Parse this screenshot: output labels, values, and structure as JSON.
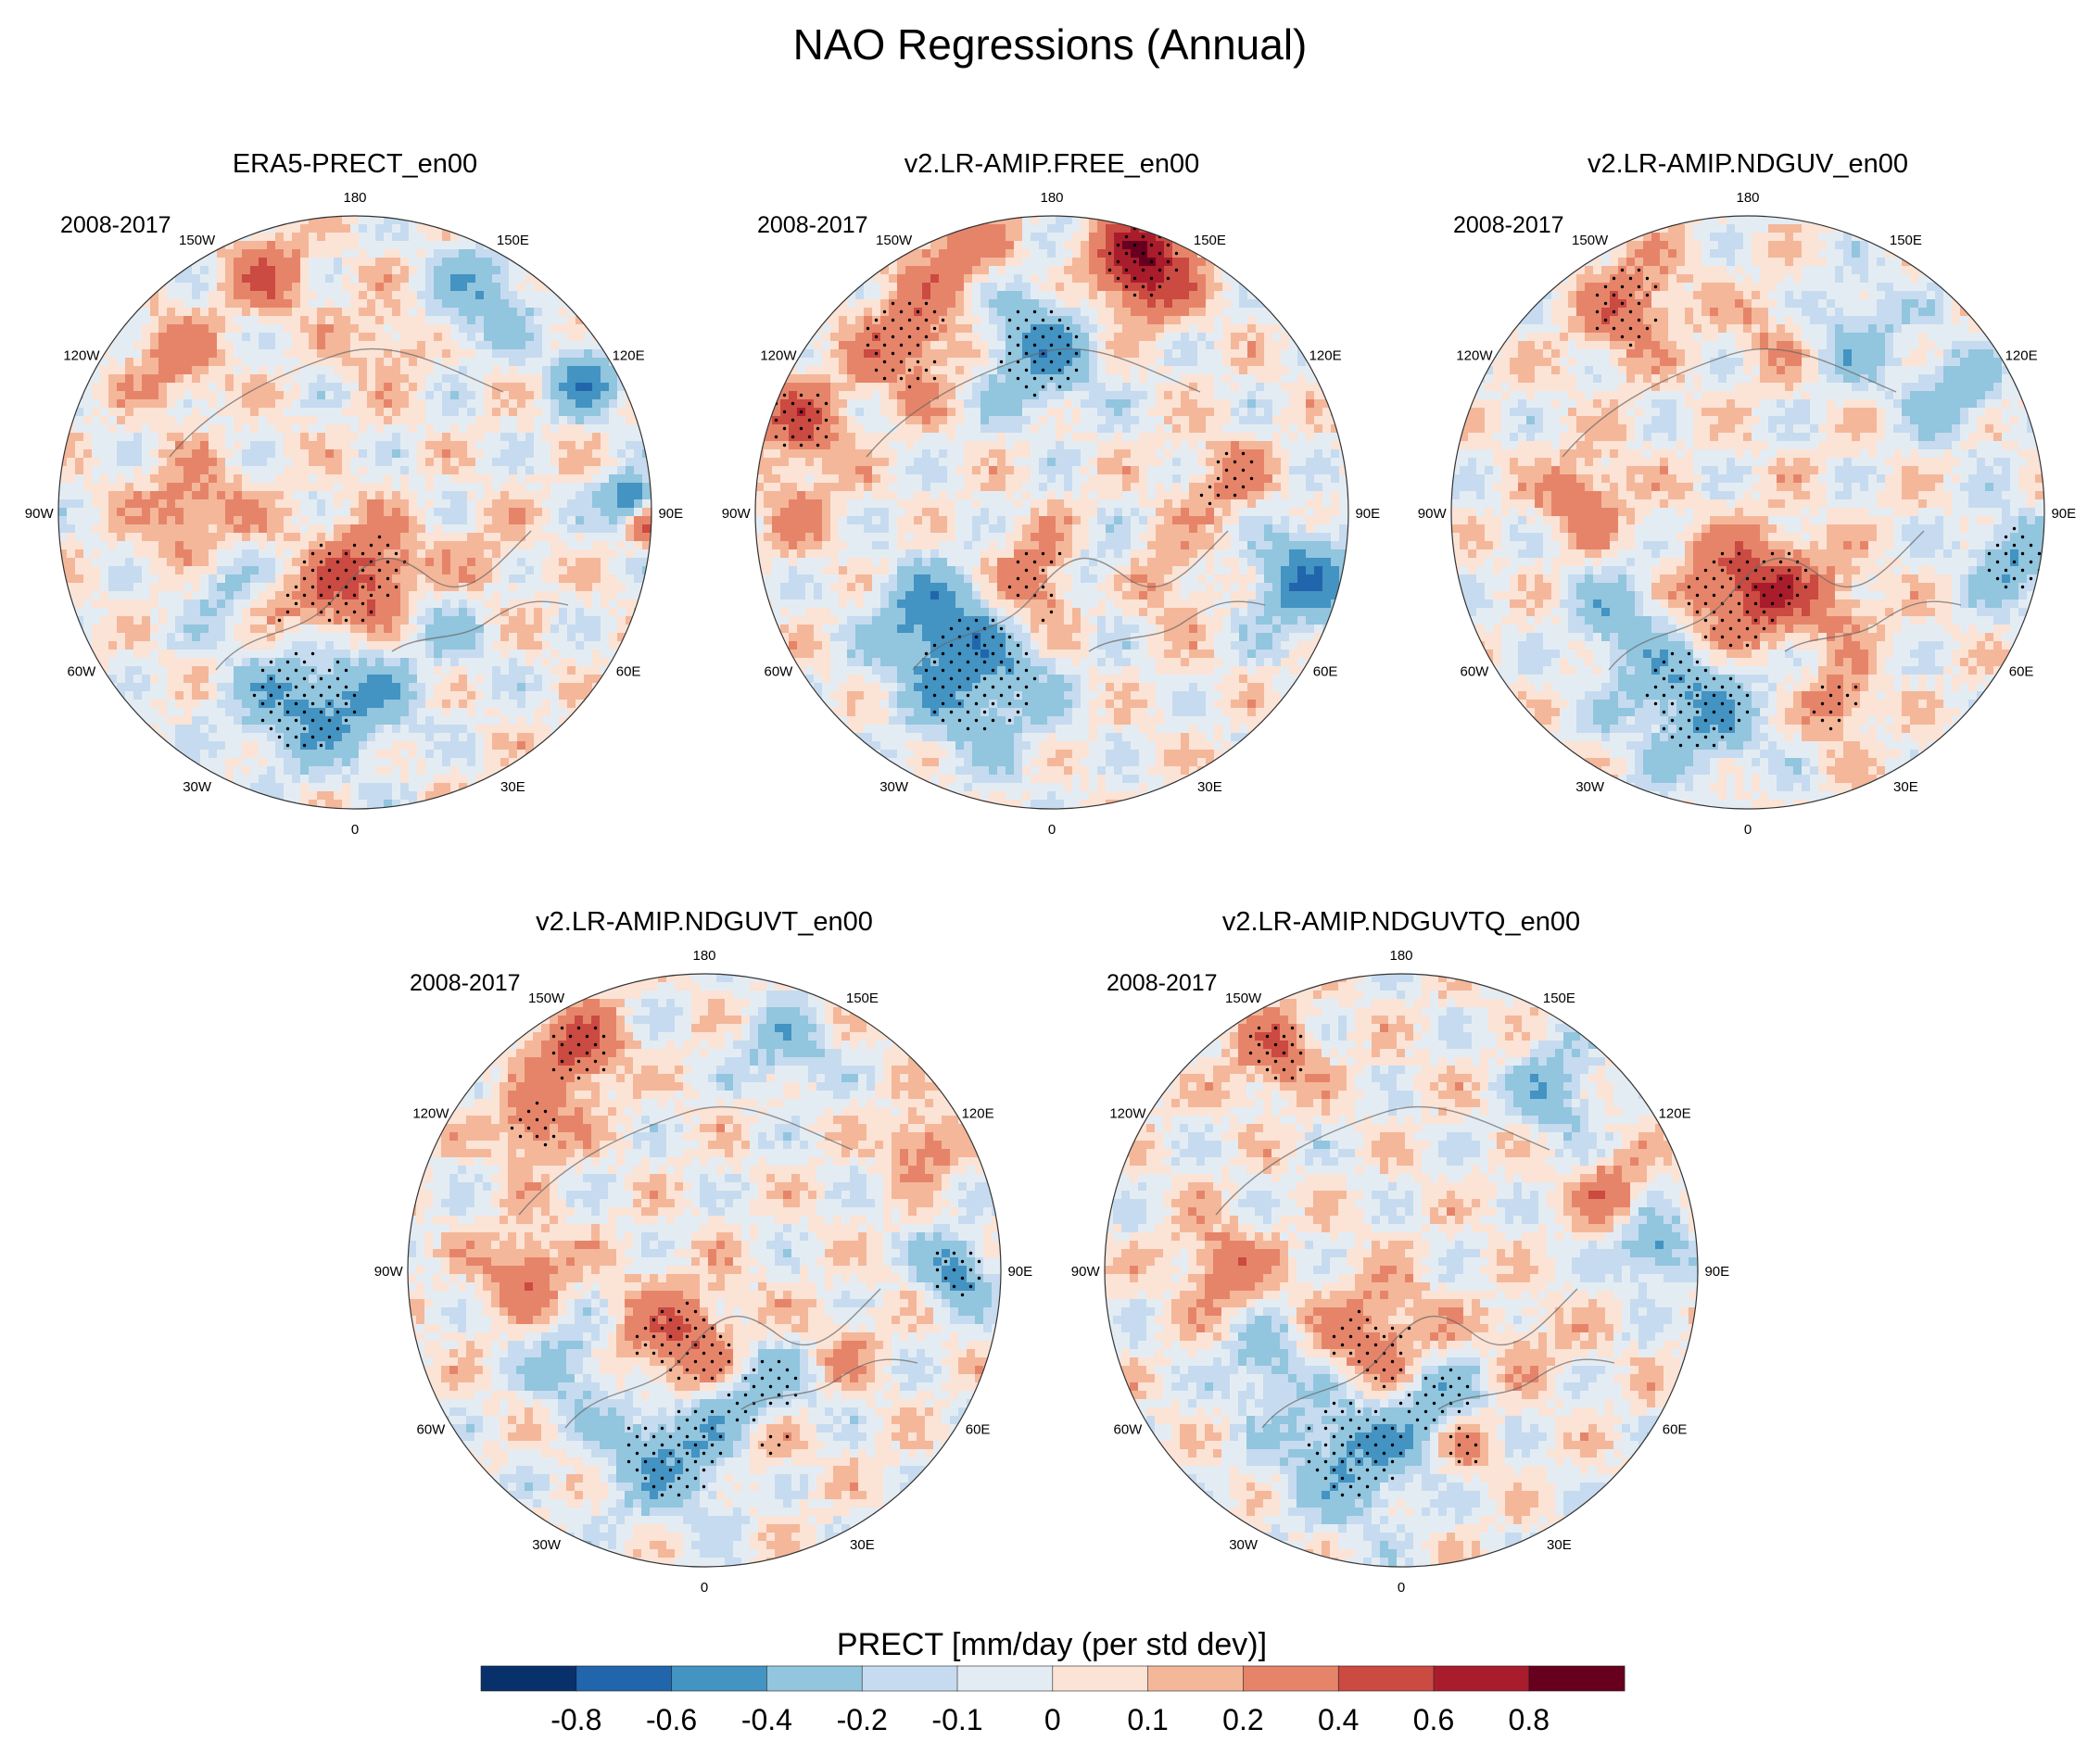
{
  "chart_data": {
    "type": "heatmap",
    "projection": "north-polar-stereographic",
    "title": "NAO Regressions (Annual)",
    "variable_label": "PRECT [mm/day (per std dev)]",
    "period_label": "2008-2017",
    "longitude_labels": [
      "180",
      "150E",
      "120E",
      "90E",
      "60E",
      "30E",
      "0",
      "30W",
      "60W",
      "90W",
      "120W",
      "150W"
    ],
    "longitude_degrees": [
      180,
      150,
      120,
      90,
      60,
      30,
      0,
      -30,
      -60,
      -90,
      -120,
      -150
    ],
    "colorbar": {
      "tick_labels": [
        "-0.8",
        "-0.6",
        "-0.4",
        "-0.2",
        "-0.1",
        "0",
        "0.1",
        "0.2",
        "0.4",
        "0.6",
        "0.8"
      ],
      "levels": [
        -0.8,
        -0.6,
        -0.4,
        -0.2,
        -0.1,
        0,
        0.1,
        0.2,
        0.4,
        0.6,
        0.8
      ],
      "colors": [
        "#08306b",
        "#2166ac",
        "#4393c3",
        "#92c5de",
        "#c6dbef",
        "#e4ecf3",
        "#fbe3d6",
        "#f4b79a",
        "#e6846a",
        "#cb4a42",
        "#a91c2b",
        "#67001f"
      ]
    },
    "panels": [
      {
        "title": "ERA5-PRECT_en00",
        "blobs": [
          {
            "lon": -15,
            "r": 0.65,
            "v": -0.45,
            "s": 0.16,
            "st": true
          },
          {
            "lon": 5,
            "r": 0.62,
            "v": -0.25,
            "s": 0.12
          },
          {
            "lon": -60,
            "r": 0.5,
            "v": -0.25,
            "s": 0.1
          },
          {
            "lon": -20,
            "r": 0.3,
            "v": 0.4,
            "s": 0.16,
            "st": true
          },
          {
            "lon": 20,
            "r": 0.2,
            "v": 0.3,
            "s": 0.1,
            "st": true
          },
          {
            "lon": -90,
            "r": 0.55,
            "v": 0.3,
            "s": 0.12
          },
          {
            "lon": -130,
            "r": 0.8,
            "v": 0.3,
            "s": 0.1
          },
          {
            "lon": -160,
            "r": 0.85,
            "v": 0.35,
            "s": 0.1
          },
          {
            "lon": 150,
            "r": 0.85,
            "v": -0.35,
            "s": 0.12
          },
          {
            "lon": 120,
            "r": 0.9,
            "v": -0.5,
            "s": 0.08
          },
          {
            "lon": 92,
            "r": 0.93,
            "v": -0.7,
            "s": 0.06
          },
          {
            "lon": 88,
            "r": 0.98,
            "v": 0.6,
            "s": 0.05
          },
          {
            "lon": 40,
            "r": 0.5,
            "v": -0.2,
            "s": 0.1
          },
          {
            "lon": 70,
            "r": 0.45,
            "v": 0.15,
            "s": 0.1
          },
          {
            "lon": -45,
            "r": 0.25,
            "v": -0.2,
            "s": 0.08
          },
          {
            "lon": 170,
            "r": 0.6,
            "v": 0.2,
            "s": 0.1
          }
        ]
      },
      {
        "title": "v2.LR-AMIP.FREE_en00",
        "blobs": [
          {
            "lon": -25,
            "r": 0.6,
            "v": -0.45,
            "s": 0.18,
            "st": true
          },
          {
            "lon": -50,
            "r": 0.55,
            "v": -0.4,
            "s": 0.12
          },
          {
            "lon": -5,
            "r": 0.25,
            "v": 0.45,
            "s": 0.12,
            "st": true
          },
          {
            "lon": 30,
            "r": 0.25,
            "v": -0.3,
            "s": 0.1,
            "st": true
          },
          {
            "lon": 160,
            "r": 0.9,
            "v": 0.8,
            "s": 0.12,
            "st": true
          },
          {
            "lon": -175,
            "r": 0.55,
            "v": -0.45,
            "s": 0.14,
            "st": true
          },
          {
            "lon": -140,
            "r": 0.75,
            "v": 0.35,
            "s": 0.14,
            "st": true
          },
          {
            "lon": -110,
            "r": 0.9,
            "v": 0.45,
            "s": 0.1,
            "st": true
          },
          {
            "lon": 75,
            "r": 0.88,
            "v": -0.55,
            "s": 0.12
          },
          {
            "lon": 100,
            "r": 0.6,
            "v": 0.25,
            "s": 0.1,
            "st": true
          },
          {
            "lon": -160,
            "r": 0.95,
            "v": 0.3,
            "s": 0.12
          },
          {
            "lon": -90,
            "r": 0.85,
            "v": 0.2,
            "s": 0.1
          },
          {
            "lon": 60,
            "r": 0.45,
            "v": 0.2,
            "s": 0.1
          }
        ]
      },
      {
        "title": "v2.LR-AMIP.NDGUV_en00",
        "blobs": [
          {
            "lon": -15,
            "r": 0.65,
            "v": -0.45,
            "s": 0.16,
            "st": true
          },
          {
            "lon": -50,
            "r": 0.55,
            "v": -0.3,
            "s": 0.12
          },
          {
            "lon": -10,
            "r": 0.3,
            "v": 0.45,
            "s": 0.15,
            "st": true
          },
          {
            "lon": 25,
            "r": 0.25,
            "v": 0.3,
            "s": 0.1,
            "st": true
          },
          {
            "lon": 25,
            "r": 0.72,
            "v": 0.35,
            "s": 0.08,
            "st": true
          },
          {
            "lon": -150,
            "r": 0.8,
            "v": 0.35,
            "s": 0.12,
            "st": true
          },
          {
            "lon": -95,
            "r": 0.55,
            "v": 0.35,
            "s": 0.1
          },
          {
            "lon": 150,
            "r": 0.7,
            "v": -0.3,
            "s": 0.12
          },
          {
            "lon": 120,
            "r": 0.8,
            "v": -0.35,
            "s": 0.1
          },
          {
            "lon": 80,
            "r": 0.9,
            "v": -0.4,
            "s": 0.1,
            "st": true
          },
          {
            "lon": 45,
            "r": 0.45,
            "v": 0.2,
            "s": 0.1
          },
          {
            "lon": 170,
            "r": 0.6,
            "v": 0.2,
            "s": 0.1
          }
        ]
      },
      {
        "title": "v2.LR-AMIP.NDGUVT_en00",
        "blobs": [
          {
            "lon": -10,
            "r": 0.6,
            "v": -0.45,
            "s": 0.16,
            "st": true
          },
          {
            "lon": 25,
            "r": 0.45,
            "v": -0.35,
            "s": 0.12,
            "st": true
          },
          {
            "lon": -55,
            "r": 0.55,
            "v": -0.3,
            "s": 0.1
          },
          {
            "lon": -15,
            "r": 0.28,
            "v": 0.45,
            "s": 0.15,
            "st": true
          },
          {
            "lon": 20,
            "r": 0.62,
            "v": 0.3,
            "s": 0.08,
            "st": true
          },
          {
            "lon": -150,
            "r": 0.85,
            "v": 0.5,
            "s": 0.1,
            "st": true
          },
          {
            "lon": -130,
            "r": 0.75,
            "v": 0.4,
            "s": 0.08,
            "st": true
          },
          {
            "lon": -90,
            "r": 0.6,
            "v": 0.35,
            "s": 0.1
          },
          {
            "lon": 90,
            "r": 0.85,
            "v": -0.5,
            "s": 0.08,
            "st": true
          },
          {
            "lon": 120,
            "r": 0.85,
            "v": 0.35,
            "s": 0.08
          },
          {
            "lon": 160,
            "r": 0.8,
            "v": -0.3,
            "s": 0.1
          },
          {
            "lon": 60,
            "r": 0.55,
            "v": 0.15,
            "s": 0.1
          }
        ]
      },
      {
        "title": "v2.LR-AMIP.NDGUVTQ_en00",
        "blobs": [
          {
            "lon": -15,
            "r": 0.62,
            "v": -0.45,
            "s": 0.16,
            "st": true
          },
          {
            "lon": 15,
            "r": 0.45,
            "v": -0.35,
            "s": 0.12,
            "st": true
          },
          {
            "lon": -55,
            "r": 0.55,
            "v": -0.3,
            "s": 0.1
          },
          {
            "lon": -15,
            "r": 0.28,
            "v": 0.4,
            "s": 0.15,
            "st": true
          },
          {
            "lon": 20,
            "r": 0.62,
            "v": 0.3,
            "s": 0.08,
            "st": true
          },
          {
            "lon": -150,
            "r": 0.85,
            "v": 0.35,
            "s": 0.1,
            "st": true
          },
          {
            "lon": -90,
            "r": 0.6,
            "v": 0.35,
            "s": 0.1
          },
          {
            "lon": 95,
            "r": 0.85,
            "v": -0.45,
            "s": 0.08
          },
          {
            "lon": 110,
            "r": 0.75,
            "v": 0.35,
            "s": 0.08
          },
          {
            "lon": 140,
            "r": 0.8,
            "v": -0.35,
            "s": 0.1
          },
          {
            "lon": 60,
            "r": 0.5,
            "v": 0.15,
            "s": 0.1
          }
        ]
      }
    ]
  }
}
